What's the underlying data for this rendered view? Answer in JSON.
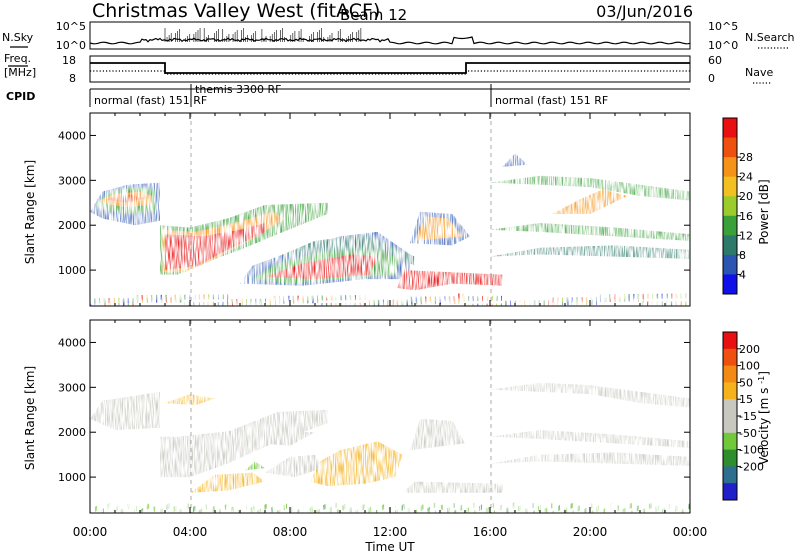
{
  "header": {
    "title": "Christmas Valley West (fitACF)",
    "beam": "Beam 12",
    "date": "03/Jun/2016"
  },
  "noise_panel": {
    "left_label": "N.Sky",
    "right_label": "N.Search",
    "left_ticks": [
      "10^5",
      "10^0"
    ],
    "right_ticks": [
      "10^5",
      "10^0"
    ]
  },
  "freq_panel": {
    "left_label_line1": "Freq.",
    "left_label_line2": "[MHz]",
    "left_ticks": [
      "18",
      "8"
    ],
    "right_label": "Nave",
    "right_ticks": [
      "60",
      "0"
    ]
  },
  "cpid": {
    "label": "CPID",
    "segments": [
      "normal (fast) 151 RF",
      "themis 3300 RF",
      "normal (fast) 151 RF"
    ]
  },
  "x_axis": {
    "label": "Time UT",
    "ticks": [
      "00:00",
      "04:00",
      "08:00",
      "12:00",
      "16:00",
      "20:00",
      "00:00"
    ]
  },
  "chart_data": [
    {
      "type": "heatmap",
      "name": "power",
      "ylabel": "Slant Range [km]",
      "yticks": [
        "1000",
        "2000",
        "3000",
        "4000"
      ],
      "ylim": [
        200,
        4500
      ],
      "xlim_hours": [
        0,
        24
      ],
      "colorbar": {
        "label": "Power [dB]",
        "ticks": [
          "4",
          "8",
          "12",
          "16",
          "20",
          "24",
          "28"
        ],
        "colors": [
          "#1010e8",
          "#2a55b0",
          "#2e7a6a",
          "#3aa03a",
          "#9ccc2c",
          "#f2c020",
          "#f59218",
          "#ee5010",
          "#e81010"
        ]
      },
      "regions": [
        {
          "t": [
            0,
            2.8
          ],
          "r": [
            2200,
            3000
          ],
          "level": "orange-red"
        },
        {
          "t": [
            2.8,
            7.5
          ],
          "r": [
            1000,
            2000
          ],
          "level": "red"
        },
        {
          "t": [
            7.5,
            12.5
          ],
          "r": [
            800,
            1500
          ],
          "level": "red-orange"
        },
        {
          "t": [
            12.5,
            16.5
          ],
          "r": [
            600,
            1000
          ],
          "level": "red"
        },
        {
          "t": [
            13,
            15
          ],
          "r": [
            1600,
            2300
          ],
          "level": "orange"
        },
        {
          "t": [
            16,
            24
          ],
          "r": [
            1300,
            3500
          ],
          "level": "green"
        }
      ]
    },
    {
      "type": "heatmap",
      "name": "velocity",
      "ylabel": "Slant Range [km]",
      "yticks": [
        "1000",
        "2000",
        "3000",
        "4000"
      ],
      "ylim": [
        200,
        4500
      ],
      "xlim_hours": [
        0,
        24
      ],
      "colorbar": {
        "label": "Velocity [m s^-1]",
        "ticks": [
          "200",
          "100",
          "50",
          "15",
          "-15",
          "-50",
          "-100",
          "-200"
        ],
        "colors": [
          "#2020c8",
          "#2e6e8e",
          "#2e8e2e",
          "#70c83a",
          "#c8c8c0",
          "#c8c8c0",
          "#f5b21c",
          "#f28a14",
          "#ee5010",
          "#e81010"
        ]
      },
      "regions": [
        {
          "t": [
            0,
            8.5
          ],
          "r": [
            1200,
            3000
          ],
          "level": "gray"
        },
        {
          "t": [
            6,
            12.5
          ],
          "r": [
            800,
            1700
          ],
          "level": "orange"
        },
        {
          "t": [
            12.5,
            24
          ],
          "r": [
            1200,
            3400
          ],
          "level": "gray"
        }
      ]
    }
  ]
}
